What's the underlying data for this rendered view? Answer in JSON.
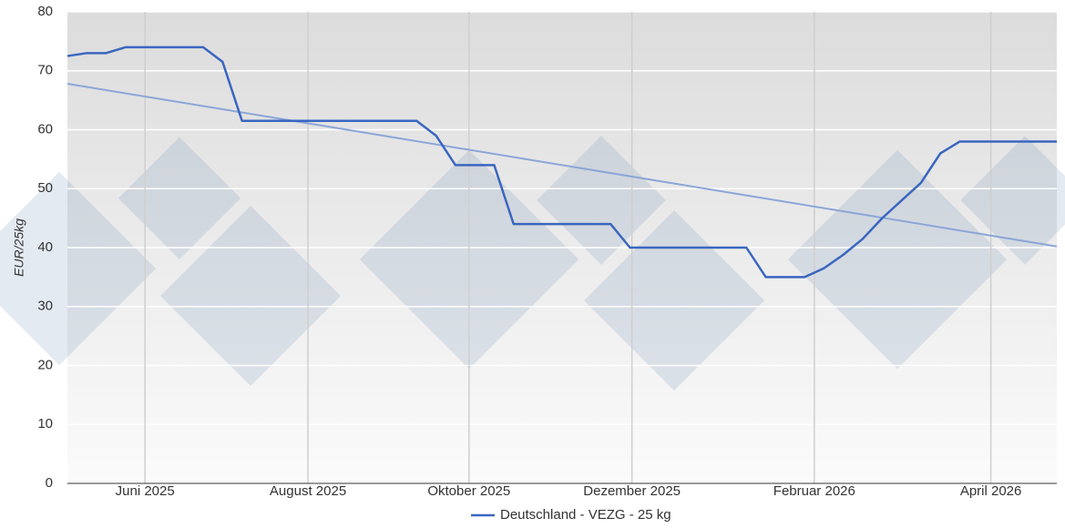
{
  "chart_data": {
    "type": "line",
    "y_label": "EUR/25kg",
    "xlim": [
      0,
      51
    ],
    "ylim": [
      0,
      80
    ],
    "yticks": [
      0,
      10,
      20,
      30,
      40,
      50,
      60,
      70,
      80
    ],
    "xticks": [
      {
        "value": 4,
        "label": "Juni 2025"
      },
      {
        "value": 12.4,
        "label": "August 2025"
      },
      {
        "value": 20.7,
        "label": "Oktober 2025"
      },
      {
        "value": 29.1,
        "label": "Dezember 2025"
      },
      {
        "value": 38.5,
        "label": "Februar 2026"
      },
      {
        "value": 47.6,
        "label": "April 2026"
      }
    ],
    "grid": true,
    "series": [
      {
        "name": "Deutschland - VEZG - 25 kg",
        "color": "#3a66c0",
        "x": [
          0,
          1,
          2,
          3,
          7,
          8,
          9,
          18,
          19,
          20,
          22,
          23,
          28,
          29,
          35,
          36,
          38,
          39,
          40,
          41,
          42,
          43,
          44,
          45,
          46,
          51
        ],
        "values": [
          72.5,
          73,
          73,
          74,
          74,
          71.5,
          61.5,
          61.5,
          59,
          54,
          54,
          44,
          44,
          40,
          40,
          35,
          35,
          36.5,
          38.8,
          41.5,
          45,
          48,
          51,
          56,
          58,
          58
        ]
      }
    ],
    "trend": {
      "color": "#8aa6d8",
      "x": [
        0,
        51
      ],
      "values": [
        67.8,
        40.2
      ]
    }
  }
}
